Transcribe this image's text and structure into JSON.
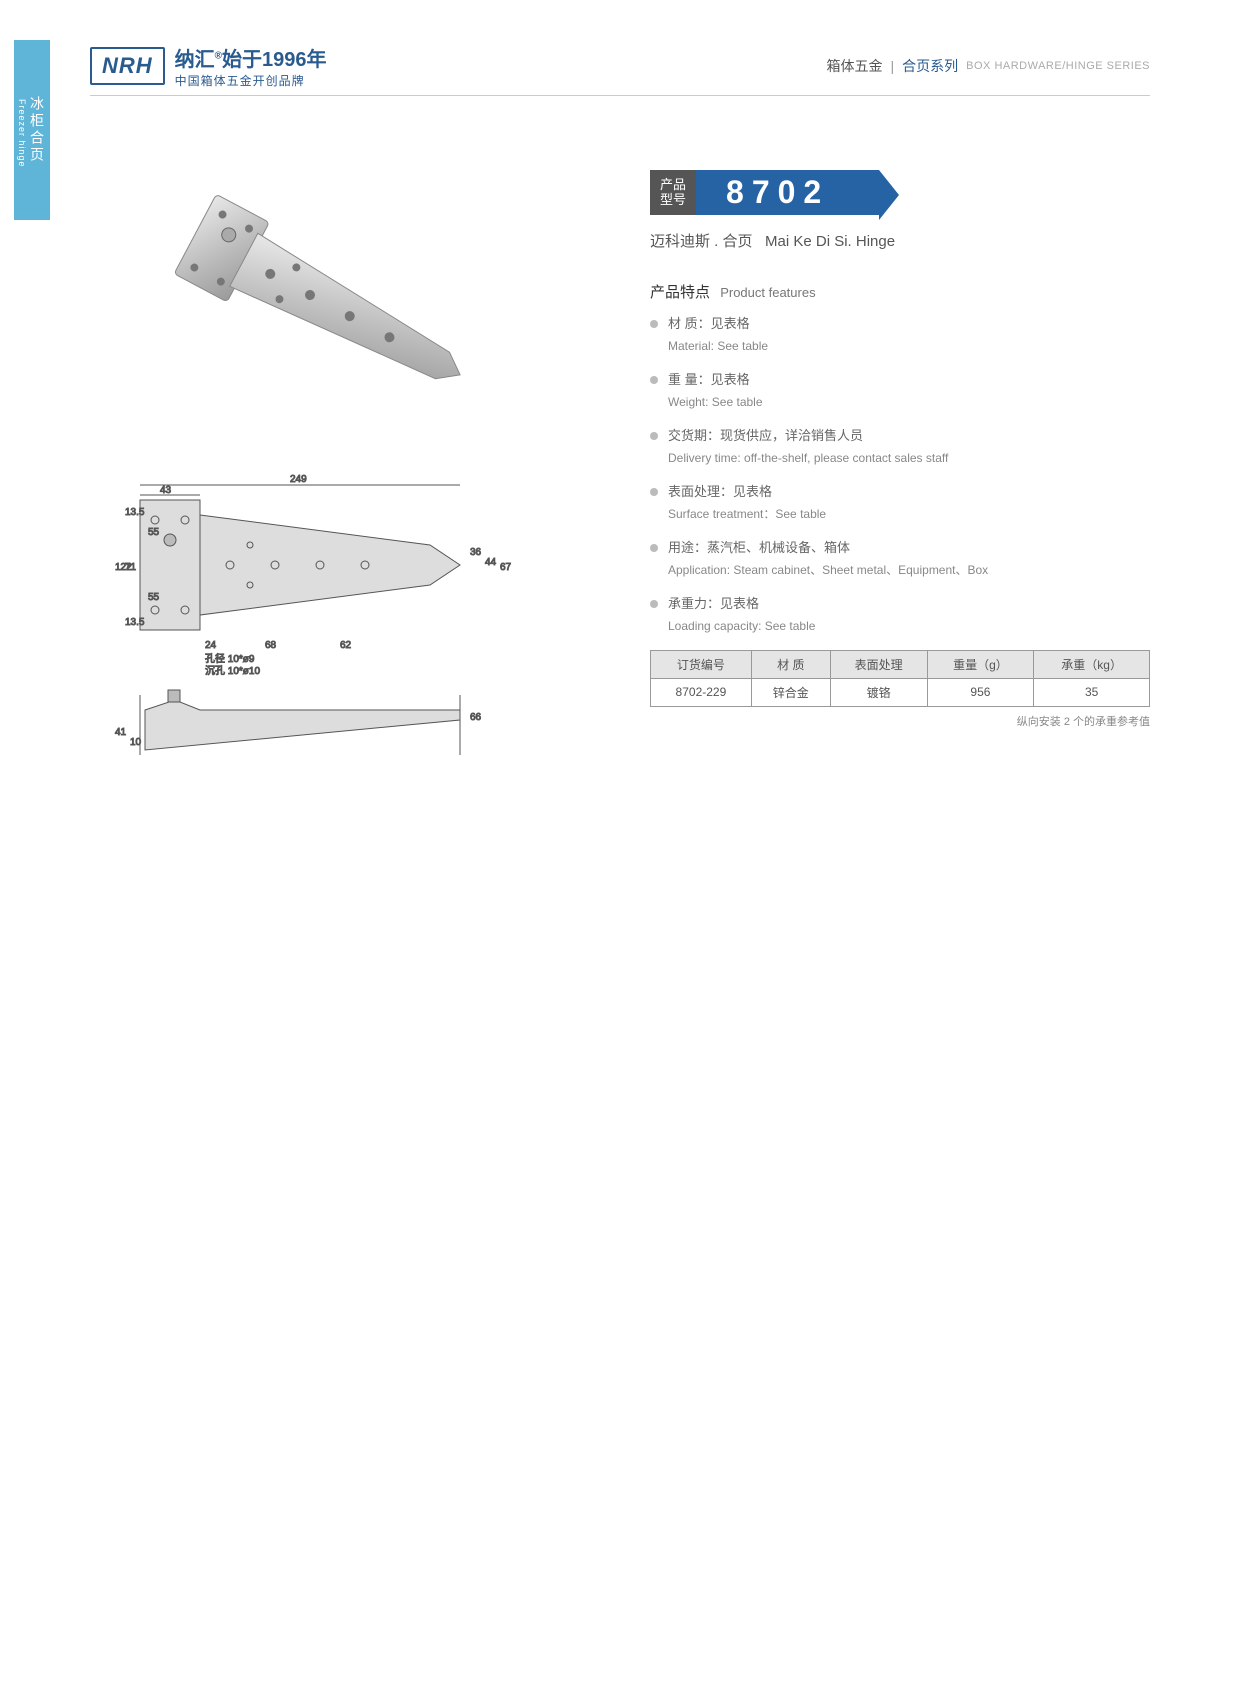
{
  "header": {
    "logo": "NRH",
    "brand_cn": "纳汇",
    "brand_year": "始于1996年",
    "brand_tagline": "中国箱体五金开创品牌",
    "category_cn1": "箱体五金",
    "category_cn2": "合页系列",
    "category_en": "BOX HARDWARE/HINGE SERIES"
  },
  "sidebar": {
    "label_cn": "冰柜合页",
    "label_en": "Freezer hinge"
  },
  "product": {
    "model_label": "产品\n型号",
    "model_number": "8702",
    "name_cn": "迈科迪斯 . 合页",
    "name_en": "Mai Ke Di Si. Hinge"
  },
  "features": {
    "title_cn": "产品特点",
    "title_en": "Product features",
    "items": [
      {
        "zh": "材  质：见表格",
        "en": "Material: See table"
      },
      {
        "zh": "重  量：见表格",
        "en": "Weight: See table"
      },
      {
        "zh": "交货期：现货供应，详洽销售人员",
        "en": "Delivery time: off-the-shelf, please contact sales staff"
      },
      {
        "zh": "表面处理：见表格",
        "en": "Surface treatment：See table"
      },
      {
        "zh": "用途：蒸汽柜、机械设备、箱体",
        "en": "Application: Steam cabinet、Sheet metal、Equipment、Box"
      },
      {
        "zh": "承重力：见表格",
        "en": "Loading capacity: See table"
      }
    ]
  },
  "table": {
    "headers": [
      "订货编号",
      "材  质",
      "表面处理",
      "重量（g）",
      "承重（kg）"
    ],
    "rows": [
      [
        "8702-229",
        "锌合金",
        "镀铬",
        "956",
        "35"
      ]
    ],
    "note": "纵向安装 2 个的承重参考值"
  },
  "drawing": {
    "dims": {
      "total_w": "249",
      "base_w": "43",
      "base_h": "122",
      "gap1": "13.5",
      "gap2": "71",
      "gap3": "13.5",
      "inner1": "24",
      "inner2": "68",
      "inner3": "62",
      "small1": "55",
      "small2": "55",
      "h1": "36",
      "h2": "44",
      "h3": "67",
      "side_h": "66",
      "side_h2": "41",
      "side_bolt": "10",
      "hole_note1": "孔径 10*ø9",
      "hole_note2": "沉孔 10*ø10"
    }
  },
  "colors": {
    "brand_blue": "#2a5b8f",
    "accent_blue": "#2663a5",
    "tab_blue": "#5fb5d8",
    "gray_text": "#666",
    "light_gray": "#bbb"
  }
}
